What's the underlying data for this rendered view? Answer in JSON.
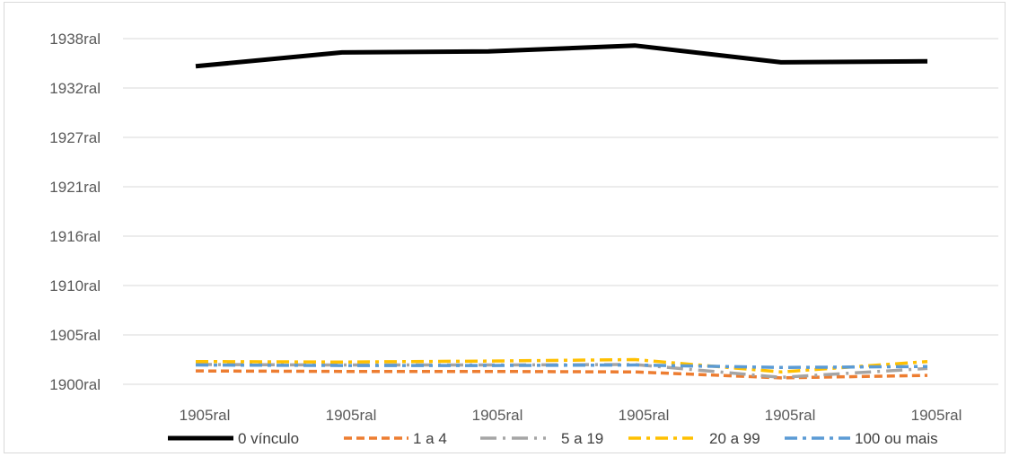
{
  "chart_data": {
    "type": "line",
    "title": "",
    "xlabel": "",
    "ylabel": "",
    "categories": [
      "1905ral",
      "1905ral",
      "1905ral",
      "1905ral",
      "1905ral",
      "1905ral"
    ],
    "y_tick_labels": [
      "1938ral",
      "1932ral",
      "1927ral",
      "1921ral",
      "1916ral",
      "1910ral",
      "1905ral",
      "1900ral"
    ],
    "y_tick_values": [
      0,
      1,
      2,
      3,
      4,
      5,
      6,
      7
    ],
    "ylim": [
      0,
      7
    ],
    "grid": true,
    "legend_position": "bottom",
    "series": [
      {
        "name": "0 vínculo",
        "color": "#000000",
        "dash": "solid",
        "values": [
          6.44,
          6.72,
          6.74,
          6.86,
          6.52,
          6.54
        ]
      },
      {
        "name": "1 a 4",
        "color": "#ED7D31",
        "dash": "dash",
        "values": [
          0.27,
          0.26,
          0.26,
          0.25,
          0.13,
          0.18
        ]
      },
      {
        "name": "5 a 19",
        "color": "#A5A5A5",
        "dash": "longdash-dot",
        "values": [
          0.4,
          0.39,
          0.39,
          0.4,
          0.14,
          0.32
        ]
      },
      {
        "name": "20 a 99",
        "color": "#FFC000",
        "dash": "dash-dot",
        "values": [
          0.46,
          0.45,
          0.47,
          0.5,
          0.25,
          0.46
        ]
      },
      {
        "name": "100 ou mais",
        "color": "#5B9BD5",
        "dash": "dash-dot",
        "values": [
          0.39,
          0.38,
          0.38,
          0.39,
          0.34,
          0.36
        ]
      }
    ]
  }
}
